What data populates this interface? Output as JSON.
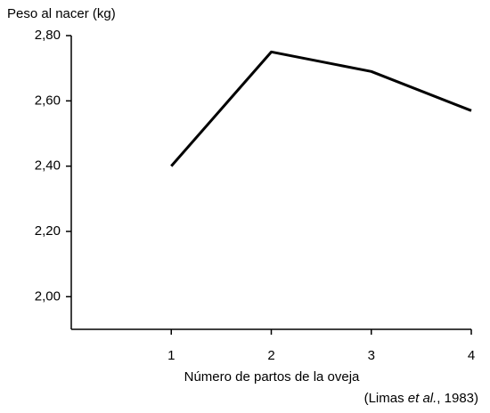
{
  "chart_data": {
    "type": "line",
    "y_label": "Peso al nacer (kg)",
    "x_label": "Número de partos de la oveja",
    "source": [
      "(Limas ",
      "et al.",
      ", 1983)"
    ],
    "x": [
      1,
      2,
      3,
      4
    ],
    "values": [
      2.4,
      2.75,
      2.69,
      2.57
    ],
    "color": "#000000",
    "xlim": [
      0,
      4
    ],
    "xticks": [
      1,
      2,
      3,
      4
    ],
    "ylim": [
      1.9,
      2.8
    ],
    "yticks": [
      {
        "value": 2.0,
        "label": "2,00"
      },
      {
        "value": 2.2,
        "label": "2,20"
      },
      {
        "value": 2.4,
        "label": "2,40"
      },
      {
        "value": 2.6,
        "label": "2,60"
      },
      {
        "value": 2.8,
        "label": "2,80"
      }
    ]
  }
}
